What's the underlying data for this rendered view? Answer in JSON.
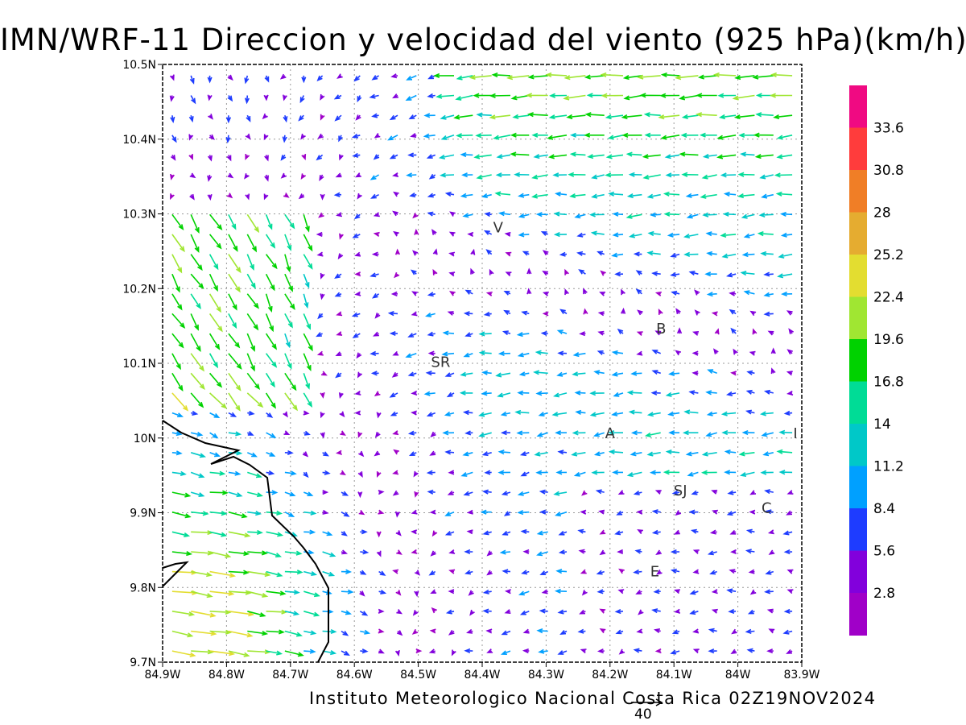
{
  "title": "IMN/WRF-11 Direccion y velocidad del viento (925 hPa)(km/h)",
  "footer": "Instituto Meteorologico Nacional Costa Rica 02Z19NOV2024",
  "vector_scale_label": "40",
  "map": {
    "lon_range": [
      -84.9,
      -83.9
    ],
    "lat_range": [
      9.7,
      10.5
    ],
    "x_tick_labels": [
      "84.9W",
      "84.8W",
      "84.7W",
      "84.6W",
      "84.5W",
      "84.4W",
      "84.3W",
      "84.2W",
      "84.1W",
      "84W",
      "83.9W"
    ],
    "y_tick_labels": [
      "10.5N",
      "10.4N",
      "10.3N",
      "10.2N",
      "10.1N",
      "10N",
      "9.9N",
      "9.8N",
      "9.7N"
    ],
    "grid": "dotted",
    "coastline_color": "#000000",
    "places": [
      {
        "label": "V",
        "lon": -84.375,
        "lat": 10.275
      },
      {
        "label": "SR",
        "lon": -84.465,
        "lat": 10.095
      },
      {
        "label": "B",
        "lon": -84.12,
        "lat": 10.14
      },
      {
        "label": "A",
        "lon": -84.2,
        "lat": 10.0
      },
      {
        "label": "SJ",
        "lon": -84.09,
        "lat": 9.923
      },
      {
        "label": "C",
        "lon": -83.955,
        "lat": 9.9
      },
      {
        "label": "E",
        "lon": -84.13,
        "lat": 9.815
      },
      {
        "label": "I",
        "lon": -83.91,
        "lat": 10.0
      }
    ]
  },
  "colorbar": {
    "labels": [
      "33.6",
      "30.8",
      "28",
      "25.2",
      "22.4",
      "19.6",
      "16.8",
      "14",
      "11.2",
      "8.4",
      "5.6",
      "2.8"
    ],
    "colors": [
      "#f00a82",
      "#ff3c3c",
      "#f07e26",
      "#e5ac30",
      "#e3dd30",
      "#a0e632",
      "#00d200",
      "#00dc96",
      "#00c8c8",
      "#00a0ff",
      "#1e3cff",
      "#8200dc",
      "#a000c8"
    ]
  }
}
